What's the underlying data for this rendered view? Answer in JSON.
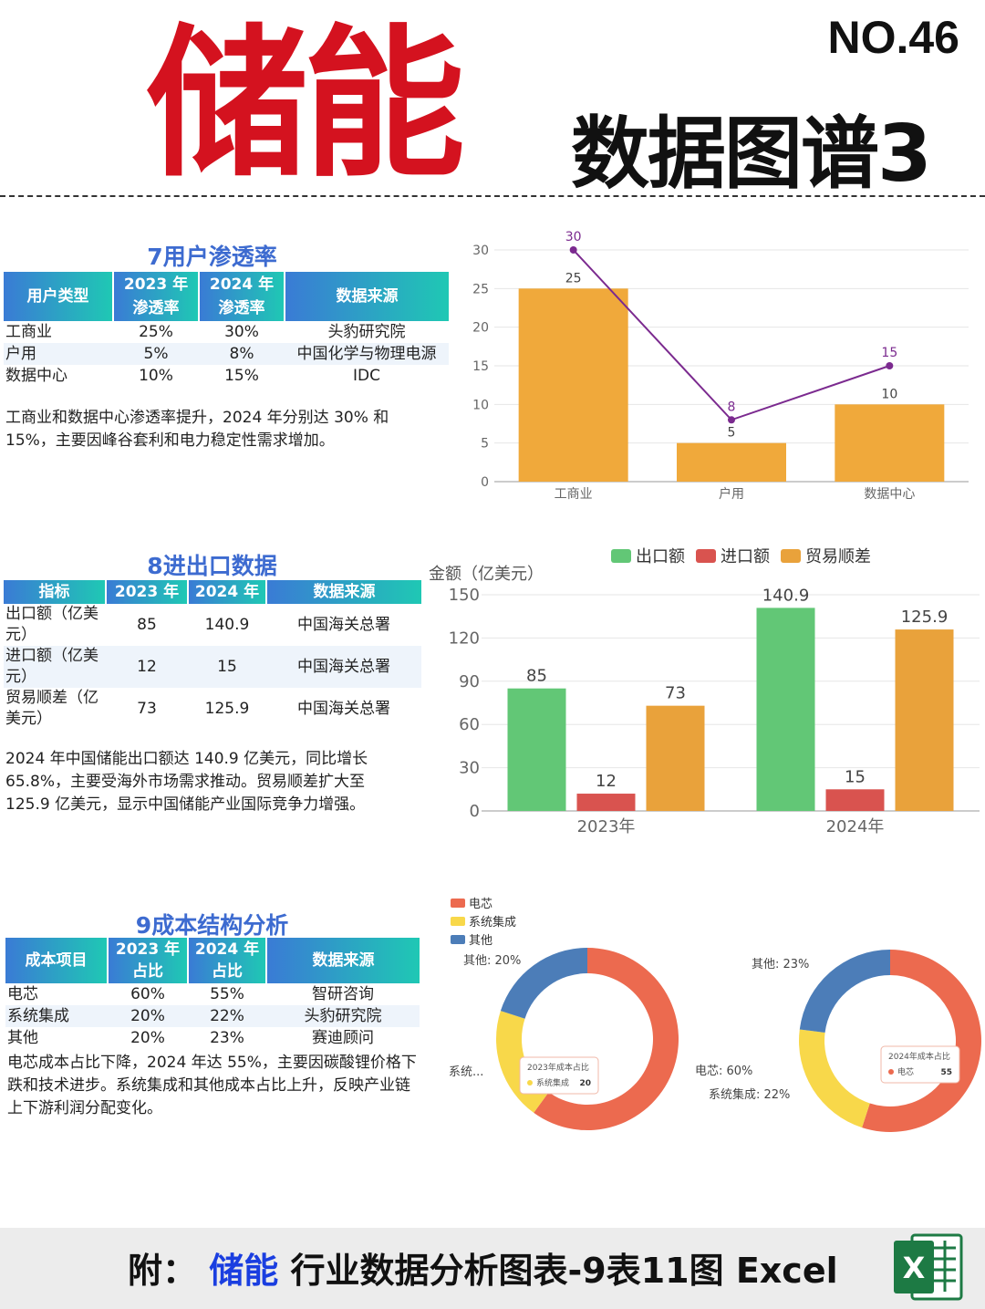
{
  "header": {
    "main_title": "储能",
    "number": "NO.46",
    "subtitle": "数据图谱3"
  },
  "colors": {
    "accent_red": "#d4121f",
    "section_blue": "#3d6bd0",
    "orange_bar": "#f0a93b",
    "purple_line": "#7b2a8f",
    "green": "#62c776",
    "red": "#d9534f",
    "gold": "#e9a23b",
    "pie_red": "#ec6a4f",
    "pie_yellow": "#f8d84a",
    "pie_blue": "#4c7db8"
  },
  "sec7": {
    "title": "7用户渗透率",
    "headers": [
      "用户类型",
      "2023 年\n渗透率",
      "2024 年\n渗透率",
      "数据来源"
    ],
    "rows": [
      [
        "工商业",
        "25%",
        "30%",
        "头豹研究院"
      ],
      [
        "户用",
        "5%",
        "8%",
        "中国化学与物理电源"
      ],
      [
        "数据中心",
        "10%",
        "15%",
        "IDC"
      ]
    ],
    "note": "工商业和数据中心渗透率提升，2024 年分别达 30% 和 15%，主要因峰谷套利和电力稳定性需求增加。"
  },
  "sec8": {
    "title": "8进出口数据",
    "headers": [
      "指标",
      "2023 年",
      "2024 年",
      "数据来源"
    ],
    "rows": [
      [
        "出口额（亿美元）",
        "85",
        "140.9",
        "中国海关总署"
      ],
      [
        "进口额（亿美元）",
        "12",
        "15",
        "中国海关总署"
      ],
      [
        "贸易顺差（亿美元）",
        "73",
        "125.9",
        "中国海关总署"
      ]
    ],
    "note": "2024 年中国储能出口额达 140.9 亿美元，同比增长 65.8%，主要受海外市场需求推动。贸易顺差扩大至 125.9 亿美元，显示中国储能产业国际竞争力增强。"
  },
  "sec9": {
    "title": "9成本结构分析",
    "headers": [
      "成本项目",
      "2023 年\n占比",
      "2024 年\n占比",
      "数据来源"
    ],
    "rows": [
      [
        "电芯",
        "60%",
        "55%",
        "智研咨询"
      ],
      [
        "系统集成",
        "20%",
        "22%",
        "头豹研究院"
      ],
      [
        "其他",
        "20%",
        "23%",
        "赛迪顾问"
      ]
    ],
    "note": "电芯成本占比下降，2024 年达 55%，主要因碳酸锂价格下跌和技术进步。系统集成和其他成本占比上升，反映产业链上下游利润分配变化。"
  },
  "footer": {
    "prefix": "附：",
    "highlight": "储能",
    "rest": "行业数据分析图表-9表11图 Excel",
    "icon_letter": "X"
  },
  "chart_data": [
    {
      "type": "bar",
      "categories": [
        "工商业",
        "户用",
        "数据中心"
      ],
      "series": [
        {
          "values": [
            25,
            5,
            10
          ]
        },
        {
          "type": "line",
          "values": [
            30,
            8,
            15
          ]
        }
      ],
      "ylim": [
        0,
        30
      ],
      "yticks": [
        0,
        5,
        10,
        15,
        20,
        25,
        30
      ],
      "grid": true
    },
    {
      "type": "bar",
      "categories": [
        "2023年",
        "2024年"
      ],
      "series": [
        {
          "name": "出口额",
          "values": [
            85,
            140.9
          ]
        },
        {
          "name": "进口额",
          "values": [
            12,
            15
          ]
        },
        {
          "name": "贸易顺差",
          "values": [
            73,
            125.9
          ]
        }
      ],
      "ylabel": "金额（亿美元）",
      "ylim": [
        0,
        150
      ],
      "yticks": [
        0,
        30,
        60,
        90,
        120,
        150
      ],
      "legend": "top",
      "grid": true
    },
    {
      "type": "pie",
      "legend_items": [
        "电芯",
        "系统集成",
        "其他"
      ],
      "pies": [
        {
          "name": "2023年成本占比",
          "labels": [
            "电芯",
            "系统集成",
            "其他"
          ],
          "values": [
            60,
            20,
            20
          ],
          "outer_labels": [
            "电芯: 60%",
            "系统...",
            "其他: 20%"
          ],
          "tooltip": {
            "title": "2023年成本占比",
            "item": "系统集成",
            "value": "20"
          }
        },
        {
          "name": "2024年成本占比",
          "labels": [
            "电芯",
            "系统集成",
            "其他"
          ],
          "values": [
            55,
            22,
            23
          ],
          "outer_labels": [
            "系统集成: 22%",
            "其他: 23%"
          ],
          "tooltip": {
            "title": "2024年成本占比",
            "item": "电芯",
            "value": "55"
          }
        }
      ]
    }
  ]
}
